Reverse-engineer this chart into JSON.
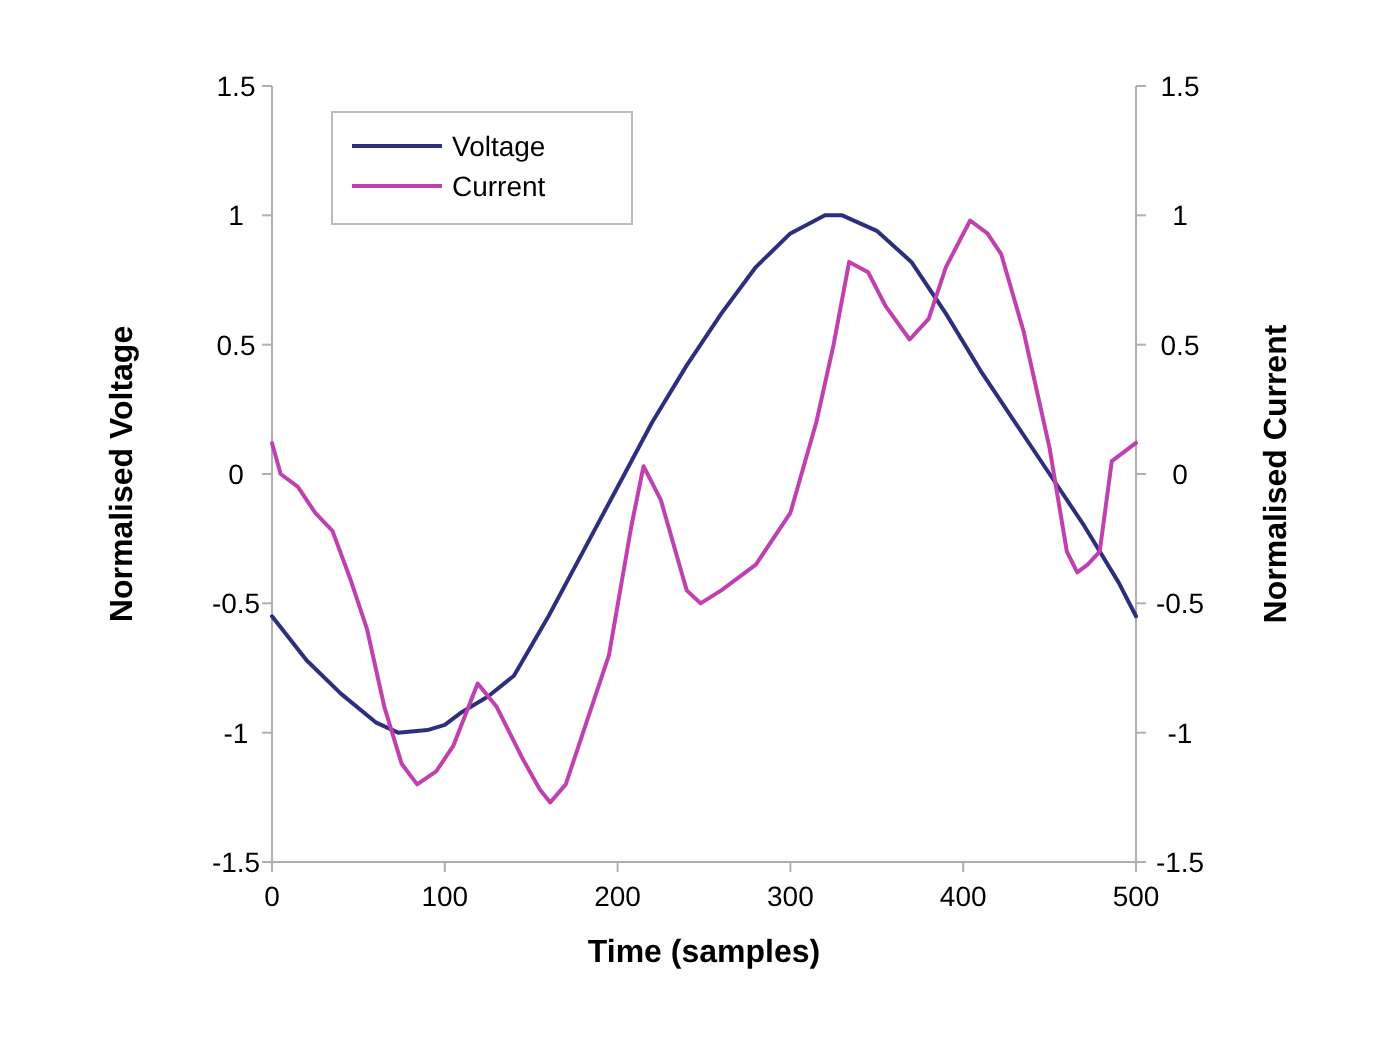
{
  "chart_data": {
    "type": "line",
    "xlabel": "Time (samples)",
    "ylabel": "Normalised Voltage",
    "y2label": "Normalised Current",
    "xlim": [
      0,
      500
    ],
    "xticks": [
      0,
      100,
      200,
      300,
      400,
      500
    ],
    "ylim": [
      -1.5,
      1.5
    ],
    "yticks": [
      -1.5,
      -1,
      -0.5,
      0,
      0.5,
      1,
      1.5
    ],
    "y2lim": [
      -1.5,
      1.5
    ],
    "y2ticks": [
      -1.5,
      -1,
      -0.5,
      0,
      0.5,
      1,
      1.5
    ],
    "legend": "top left",
    "grid": false,
    "marker": "none",
    "line_style": "solid",
    "series": [
      {
        "name": "Voltage",
        "color": "#2e2e7e",
        "x": [
          0,
          20,
          40,
          60,
          73,
          90,
          100,
          110,
          125,
          140,
          160,
          180,
          200,
          220,
          240,
          260,
          280,
          300,
          320,
          330,
          350,
          370,
          390,
          410,
          430,
          450,
          470,
          490,
          500
        ],
        "values": [
          -0.55,
          -0.72,
          -0.85,
          -0.96,
          -1.0,
          -0.99,
          -0.97,
          -0.92,
          -0.86,
          -0.78,
          -0.55,
          -0.3,
          -0.05,
          0.2,
          0.42,
          0.62,
          0.8,
          0.93,
          1.0,
          1.0,
          0.94,
          0.82,
          0.62,
          0.4,
          0.2,
          0.0,
          -0.2,
          -0.42,
          -0.55
        ]
      },
      {
        "name": "Current",
        "color": "#c040b0",
        "x": [
          0,
          5,
          15,
          25,
          35,
          45,
          55,
          65,
          75,
          84,
          95,
          105,
          119,
          130,
          145,
          155,
          161,
          170,
          180,
          195,
          208,
          215,
          225,
          240,
          248,
          260,
          280,
          300,
          315,
          325,
          334,
          345,
          355,
          369,
          380,
          390,
          404,
          414,
          422,
          435,
          450,
          460,
          466,
          472,
          479,
          486,
          500
        ],
        "values": [
          0.12,
          0.0,
          -0.05,
          -0.15,
          -0.22,
          -0.4,
          -0.6,
          -0.9,
          -1.12,
          -1.2,
          -1.15,
          -1.05,
          -0.81,
          -0.9,
          -1.1,
          -1.22,
          -1.27,
          -1.2,
          -1.0,
          -0.7,
          -0.2,
          0.03,
          -0.1,
          -0.45,
          -0.5,
          -0.45,
          -0.35,
          -0.15,
          0.2,
          0.5,
          0.82,
          0.78,
          0.65,
          0.52,
          0.6,
          0.8,
          0.98,
          0.93,
          0.85,
          0.55,
          0.1,
          -0.3,
          -0.38,
          -0.35,
          -0.3,
          0.05,
          0.12
        ]
      }
    ]
  }
}
